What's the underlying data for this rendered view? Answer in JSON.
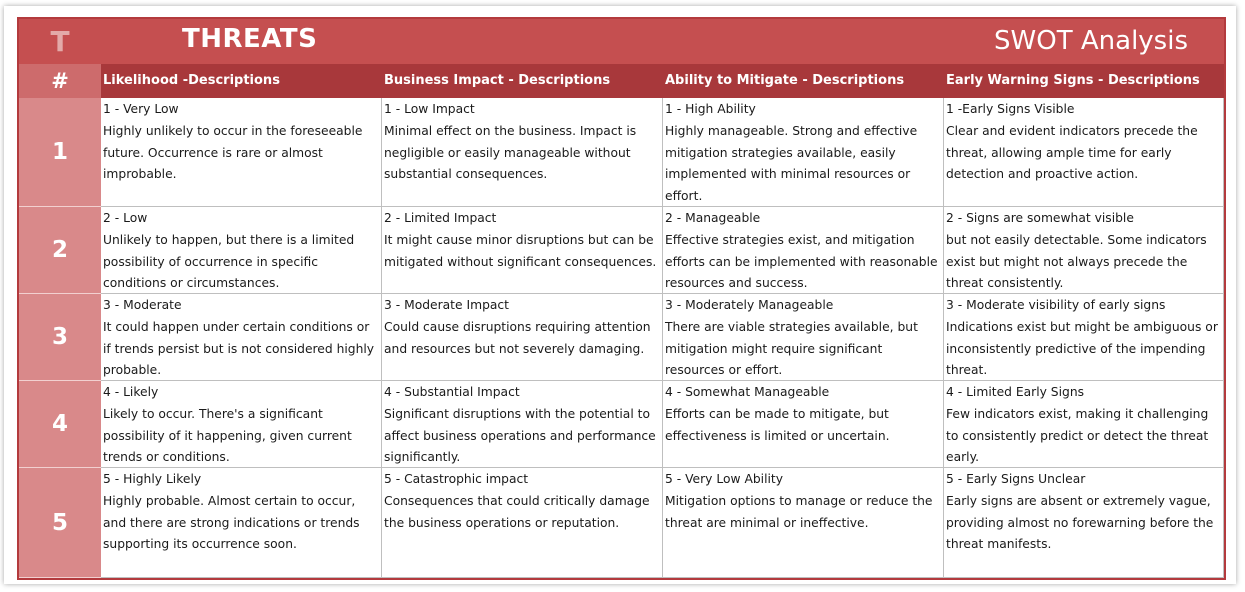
{
  "header": {
    "letter": "T",
    "title": "THREATS",
    "subtitle": "SWOT Analysis"
  },
  "table": {
    "number_header": "#",
    "columns": [
      "Likelihood -Descriptions",
      "Business Impact - Descriptions",
      "Ability to Mitigate - Descriptions",
      "Early Warning Signs - Descriptions"
    ],
    "rows": [
      {
        "num": "1",
        "cells": [
          {
            "level": "1 - Very Low",
            "desc": "Highly unlikely to occur in the foreseeable future. Occurrence is rare or almost improbable."
          },
          {
            "level": "1 - Low Impact",
            "desc": "Minimal effect on the business. Impact is negligible or easily manageable without substantial consequences."
          },
          {
            "level": "1 - High Ability",
            "desc": "Highly manageable. Strong and effective mitigation strategies available, easily implemented with minimal resources or effort."
          },
          {
            "level": "1 -Early Signs Visible",
            "desc": "Clear and evident indicators precede the threat, allowing ample time for early detection and proactive action."
          }
        ]
      },
      {
        "num": "2",
        "cells": [
          {
            "level": "2 - Low",
            "desc": "Unlikely to happen, but there is a limited possibility of occurrence in specific conditions or circumstances."
          },
          {
            "level": "2 - Limited Impact",
            "desc": "It might cause minor disruptions but can be mitigated without significant consequences."
          },
          {
            "level": "2 - Manageable",
            "desc": "Effective strategies exist, and mitigation efforts can be implemented with reasonable resources and success."
          },
          {
            "level": "2 - Signs are somewhat visible",
            "desc": "but not easily detectable. Some indicators exist but might not always precede the threat consistently."
          }
        ]
      },
      {
        "num": "3",
        "cells": [
          {
            "level": "3 - Moderate",
            "desc": "It could happen under certain conditions or if trends persist but is not considered highly probable."
          },
          {
            "level": "3 - Moderate Impact",
            "desc": "Could cause disruptions requiring attention and resources but not severely damaging."
          },
          {
            "level": "3 - Moderately Manageable",
            "desc": "There are viable strategies available, but mitigation might require significant resources or effort."
          },
          {
            "level": "3 - Moderate visibility of early signs",
            "desc": "Indications exist but might be ambiguous or inconsistently predictive of the impending threat."
          }
        ]
      },
      {
        "num": "4",
        "cells": [
          {
            "level": "4 - Likely",
            "desc": "Likely to occur. There's a significant possibility of it happening, given current trends or conditions."
          },
          {
            "level": "4 - Substantial Impact",
            "desc": "Significant disruptions with the potential to affect business operations and performance significantly."
          },
          {
            "level": "4 - Somewhat Manageable",
            "desc": "Efforts can be made to mitigate, but effectiveness is limited or uncertain."
          },
          {
            "level": "4 - Limited Early Signs",
            "desc": "Few indicators exist, making it challenging to consistently predict or detect the threat early."
          }
        ]
      },
      {
        "num": "5",
        "cells": [
          {
            "level": "5 - Highly Likely",
            "desc": "Highly probable. Almost certain to occur, and there are strong indications or trends supporting its occurrence soon."
          },
          {
            "level": "5 - Catastrophic impact",
            "desc": "Consequences that could critically damage the business operations or reputation."
          },
          {
            "level": "5 - Very Low Ability",
            "desc": "Mitigation options to manage or reduce the threat are minimal or ineffective."
          },
          {
            "level": "5 - Early Signs Unclear",
            "desc": "Early signs are absent or extremely vague, providing almost no forewarning before the threat manifests."
          }
        ]
      }
    ]
  }
}
